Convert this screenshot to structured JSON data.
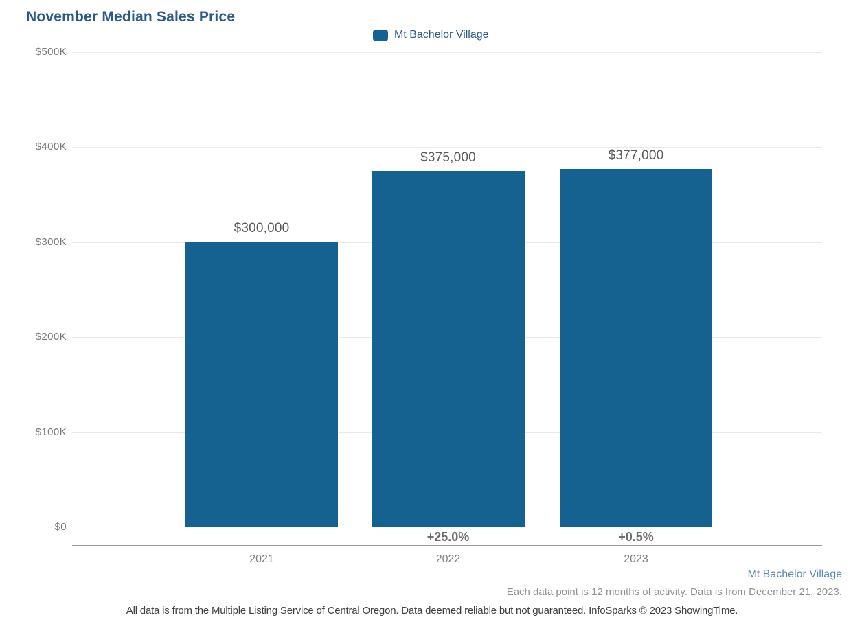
{
  "title": "November Median Sales Price",
  "legend": {
    "label": "Mt Bachelor Village",
    "swatch_icon": "series-swatch-icon"
  },
  "chart_data": {
    "type": "bar",
    "title": "November Median Sales Price",
    "categories": [
      "2021",
      "2022",
      "2023"
    ],
    "series": [
      {
        "name": "Mt Bachelor Village",
        "values": [
          300000,
          375000,
          377000
        ]
      }
    ],
    "value_labels": [
      "$300,000",
      "$375,000",
      "$377,000"
    ],
    "pct_change_labels": [
      "",
      "+25.0%",
      "+0.5%"
    ],
    "y_tick_labels": [
      "$500K",
      "$400K",
      "$300K",
      "$200K",
      "$100K",
      "$0"
    ],
    "ylim": [
      0,
      500000
    ],
    "xlabel": "",
    "ylabel": "",
    "grid": "horizontal",
    "legend_position": "top-center"
  },
  "footer": {
    "series_caption": "Mt Bachelor Village",
    "note": "Each data point is 12 months of activity. Data is from December 21, 2023.",
    "disclaimer": "All data is from the Multiple Listing Service of Central Oregon. Data deemed reliable but not guaranteed. InfoSparks © 2023 ShowingTime."
  },
  "colors": {
    "bar": "#15618F",
    "title_text": "#2B5A87",
    "series_caption_link": "#5B85B8",
    "gridline": "#E9E9E9",
    "axis_line": "#98999B"
  }
}
